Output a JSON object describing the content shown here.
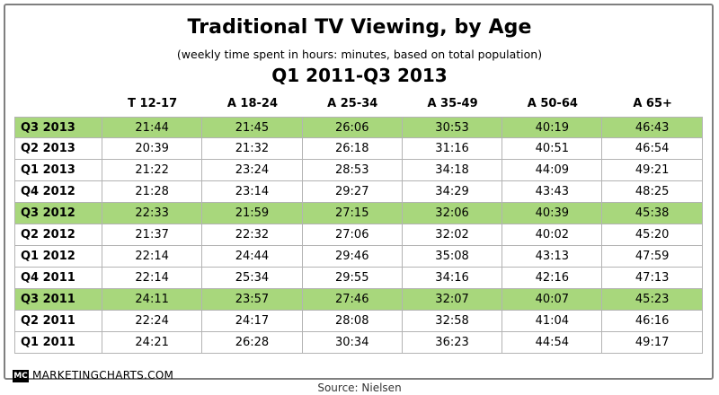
{
  "chart_data": {
    "type": "table",
    "title": "Traditional TV Viewing, by Age",
    "subtitle": "(weekly time spent in hours: minutes, based on total population)",
    "period": "Q1 2011-Q3 2013",
    "columns": [
      "T 12-17",
      "A 18-24",
      "A 25-34",
      "A 35-49",
      "A 50-64",
      "A 65+"
    ],
    "rows": [
      {
        "label": "Q3 2013",
        "highlight": true,
        "values": [
          "21:44",
          "21:45",
          "26:06",
          "30:53",
          "40:19",
          "46:43"
        ]
      },
      {
        "label": "Q2 2013",
        "highlight": false,
        "values": [
          "20:39",
          "21:32",
          "26:18",
          "31:16",
          "40:51",
          "46:54"
        ]
      },
      {
        "label": "Q1 2013",
        "highlight": false,
        "values": [
          "21:22",
          "23:24",
          "28:53",
          "34:18",
          "44:09",
          "49:21"
        ]
      },
      {
        "label": "Q4 2012",
        "highlight": false,
        "values": [
          "21:28",
          "23:14",
          "29:27",
          "34:29",
          "43:43",
          "48:25"
        ]
      },
      {
        "label": "Q3 2012",
        "highlight": true,
        "values": [
          "22:33",
          "21:59",
          "27:15",
          "32:06",
          "40:39",
          "45:38"
        ]
      },
      {
        "label": "Q2 2012",
        "highlight": false,
        "values": [
          "21:37",
          "22:32",
          "27:06",
          "32:02",
          "40:02",
          "45:20"
        ]
      },
      {
        "label": "Q1 2012",
        "highlight": false,
        "values": [
          "22:14",
          "24:44",
          "29:46",
          "35:08",
          "43:13",
          "47:59"
        ]
      },
      {
        "label": "Q4 2011",
        "highlight": false,
        "values": [
          "22:14",
          "25:34",
          "29:55",
          "34:16",
          "42:16",
          "47:13"
        ]
      },
      {
        "label": "Q3 2011",
        "highlight": true,
        "values": [
          "24:11",
          "23:57",
          "27:46",
          "32:07",
          "40:07",
          "45:23"
        ]
      },
      {
        "label": "Q2 2011",
        "highlight": false,
        "values": [
          "22:24",
          "24:17",
          "28:08",
          "32:58",
          "41:04",
          "46:16"
        ]
      },
      {
        "label": "Q1 2011",
        "highlight": false,
        "values": [
          "24:21",
          "26:28",
          "30:34",
          "36:23",
          "44:54",
          "49:17"
        ]
      }
    ],
    "highlight_color": "#a8d77c"
  },
  "footer": {
    "logo_text": "MC",
    "brand": "MARKETINGCHARTS.COM",
    "source": "Source: Nielsen"
  }
}
